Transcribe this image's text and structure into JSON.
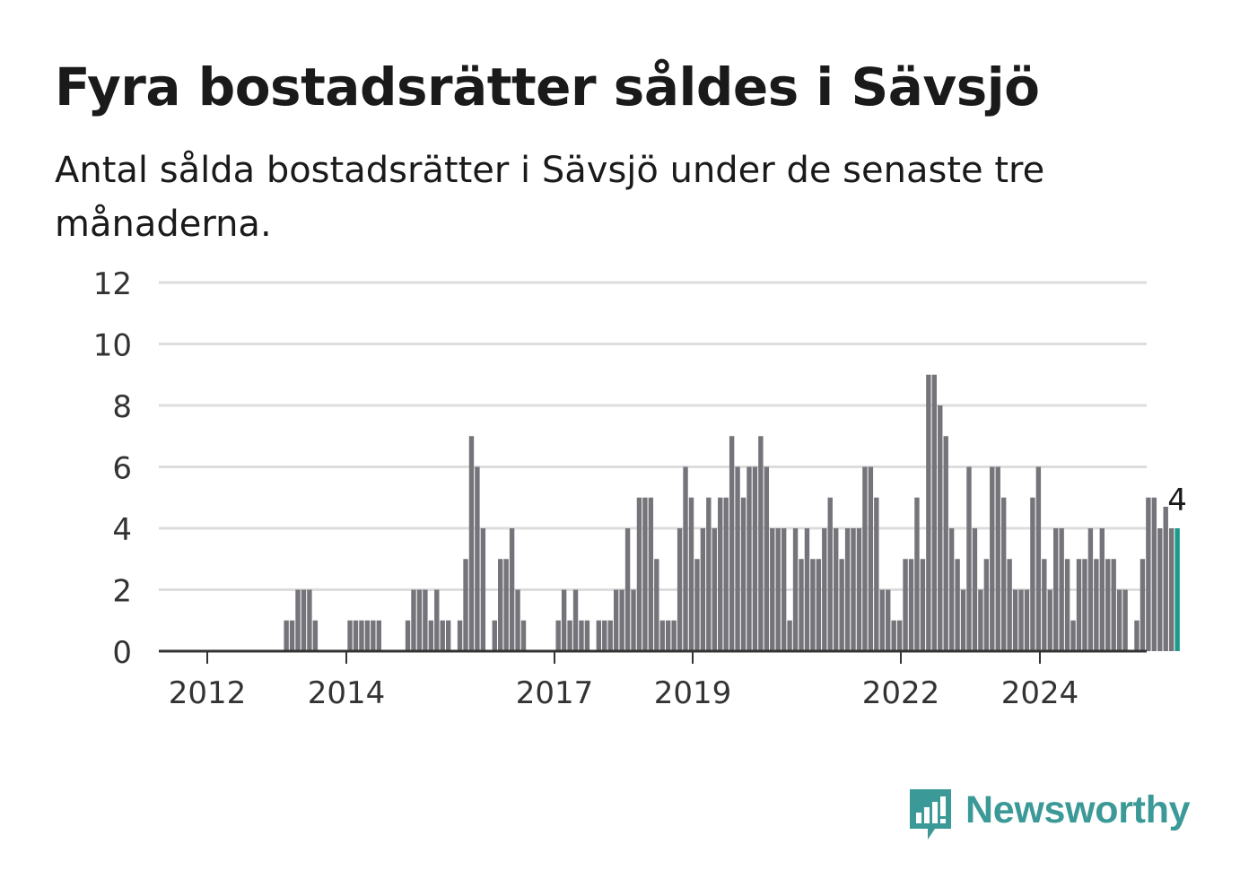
{
  "title": "Fyra bostadsrätter såldes i Sävsjö",
  "subtitle": "Antal sålda bostadsrätter i Sävsjö under de senaste tre månaderna.",
  "brand": {
    "name": "Newsworthy",
    "icon": "newsworthy-logo-icon",
    "color": "#3b9a97"
  },
  "colors": {
    "bar": "#75747a",
    "highlight": "#1a9b8c",
    "grid": "#dddddd",
    "axis": "#333333"
  },
  "chart_data": {
    "type": "bar",
    "ylim": [
      0,
      12
    ],
    "yticks": [
      0,
      2,
      4,
      6,
      8,
      10,
      12
    ],
    "xtick_labels": [
      "2012",
      "2014",
      "2017",
      "2019",
      "2022",
      "2024"
    ],
    "grid": true,
    "highlight_label": "4",
    "series": [
      {
        "values": [
          0,
          0,
          0,
          0,
          0,
          0,
          0,
          0,
          0,
          0,
          0,
          1,
          1,
          2,
          2,
          2,
          1,
          0,
          0,
          0,
          0,
          0,
          1,
          1,
          1,
          1,
          1,
          1,
          0,
          0,
          0,
          0,
          1,
          2,
          2,
          2,
          1,
          2,
          1,
          1,
          0,
          1,
          3,
          7,
          6,
          4,
          0,
          1,
          3,
          3,
          4,
          2,
          1,
          0,
          0,
          0,
          0,
          0,
          1,
          2,
          1,
          2,
          1,
          1,
          0,
          1,
          1,
          1,
          2,
          2,
          4,
          2,
          5,
          5,
          5,
          3,
          1,
          1,
          1,
          4,
          6,
          5,
          3,
          4,
          5,
          4,
          5,
          5,
          7,
          6,
          5,
          6,
          6,
          7,
          6,
          4,
          4,
          4,
          1,
          4,
          3,
          4,
          3,
          3,
          4,
          5,
          4,
          3,
          4,
          4,
          4,
          6,
          6,
          5,
          2,
          2,
          1,
          1,
          3,
          3,
          5,
          3,
          9,
          9,
          8,
          7,
          4,
          3,
          2,
          6,
          4,
          2,
          3,
          6,
          6,
          5,
          3,
          2,
          2,
          2,
          5,
          6,
          3,
          2,
          4,
          4,
          3,
          1,
          3,
          3,
          4,
          3,
          4,
          3,
          3,
          2,
          2,
          0,
          1,
          3,
          5,
          5,
          4,
          4.7,
          4,
          4
        ]
      }
    ]
  }
}
